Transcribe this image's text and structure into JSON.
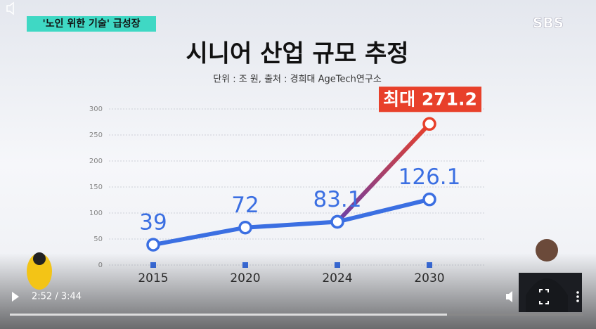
{
  "header": {
    "badge": "'노인 위한 기술' 급성장",
    "logo": "SBS"
  },
  "chart_data": {
    "type": "line",
    "title": "시니어 산업 규모 추정",
    "subtitle": "단위 : 조 원, 출처 : 경희대 AgeTech연구소",
    "categories": [
      "2015",
      "2020",
      "2024",
      "2030"
    ],
    "series": [
      {
        "color": "#3b6fe2",
        "values": [
          39,
          72,
          83.1,
          126.1
        ]
      },
      {
        "color": "#e8402a",
        "values": [
          null,
          null,
          83.1,
          271.2
        ],
        "value_labels": [
          null,
          null,
          null,
          "최대 271.2"
        ]
      }
    ],
    "ylim": [
      0,
      300
    ],
    "yticks": [
      0,
      50,
      100,
      150,
      200,
      250,
      300
    ],
    "grid": true
  },
  "player": {
    "time": "2:52 / 3:44"
  }
}
